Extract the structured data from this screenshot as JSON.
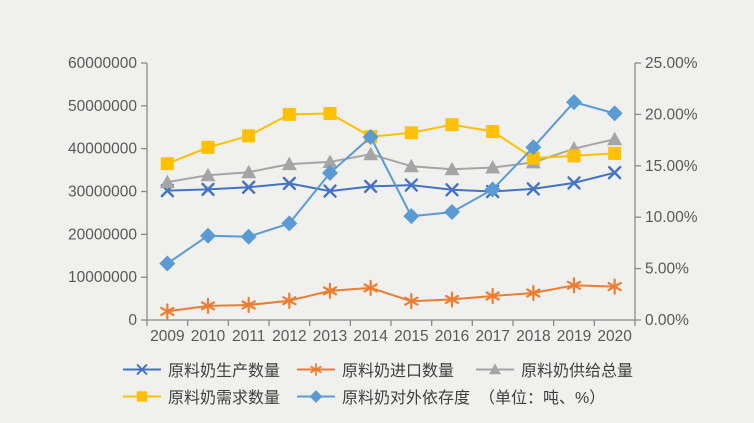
{
  "chart_data": {
    "type": "line",
    "title": "",
    "unit_note": "（单位：吨、%）",
    "categories": [
      "2009",
      "2010",
      "2011",
      "2012",
      "2013",
      "2014",
      "2015",
      "2016",
      "2017",
      "2018",
      "2019",
      "2020"
    ],
    "left_axis": {
      "min": 0,
      "max": 60000000,
      "step": 10000000,
      "tick_labels": [
        "60000000",
        "50000000",
        "40000000",
        "30000000",
        "20000000",
        "10000000",
        "0"
      ]
    },
    "right_axis": {
      "min": 0,
      "max": 25,
      "step": 5,
      "tick_labels": [
        "25.00%",
        "20.00%",
        "15.00%",
        "10.00%",
        "5.00%",
        "0.00%"
      ]
    },
    "grid": "off",
    "legend_position": "bottom",
    "axis_color": "#8a8a8a",
    "label_color": "#595959",
    "series": [
      {
        "key": "production",
        "name": "原料奶生产数量",
        "axis": "left",
        "marker": "x",
        "color": "#4472C4",
        "values": [
          30200000,
          30500000,
          31000000,
          31900000,
          30100000,
          31200000,
          31500000,
          30400000,
          30000000,
          30600000,
          32000000,
          34400000
        ]
      },
      {
        "key": "import",
        "name": "原料奶进口数量",
        "axis": "left",
        "marker": "asterisk",
        "color": "#ED7D31",
        "values": [
          2000000,
          3300000,
          3500000,
          4500000,
          6800000,
          7500000,
          4400000,
          4800000,
          5600000,
          6300000,
          8100000,
          7800000
        ]
      },
      {
        "key": "supply",
        "name": "原料奶供给总量",
        "axis": "left",
        "marker": "triangle",
        "color": "#A5A5A5",
        "values": [
          32200000,
          33800000,
          34500000,
          36400000,
          36900000,
          38700000,
          35900000,
          35200000,
          35600000,
          36800000,
          40000000,
          42200000
        ]
      },
      {
        "key": "demand",
        "name": "原料奶需求数量",
        "axis": "left",
        "marker": "square",
        "color": "#FFC000",
        "values": [
          36500000,
          40300000,
          43000000,
          48000000,
          48200000,
          42800000,
          43700000,
          45600000,
          44000000,
          37800000,
          38300000,
          38900000
        ]
      },
      {
        "key": "dependence",
        "name": "原料奶对外依存度",
        "axis": "right",
        "marker": "diamond",
        "color": "#5B9BD5",
        "values": [
          5.5,
          8.2,
          8.1,
          9.4,
          14.3,
          17.8,
          10.1,
          10.5,
          12.7,
          16.8,
          21.2,
          20.1
        ]
      }
    ]
  }
}
